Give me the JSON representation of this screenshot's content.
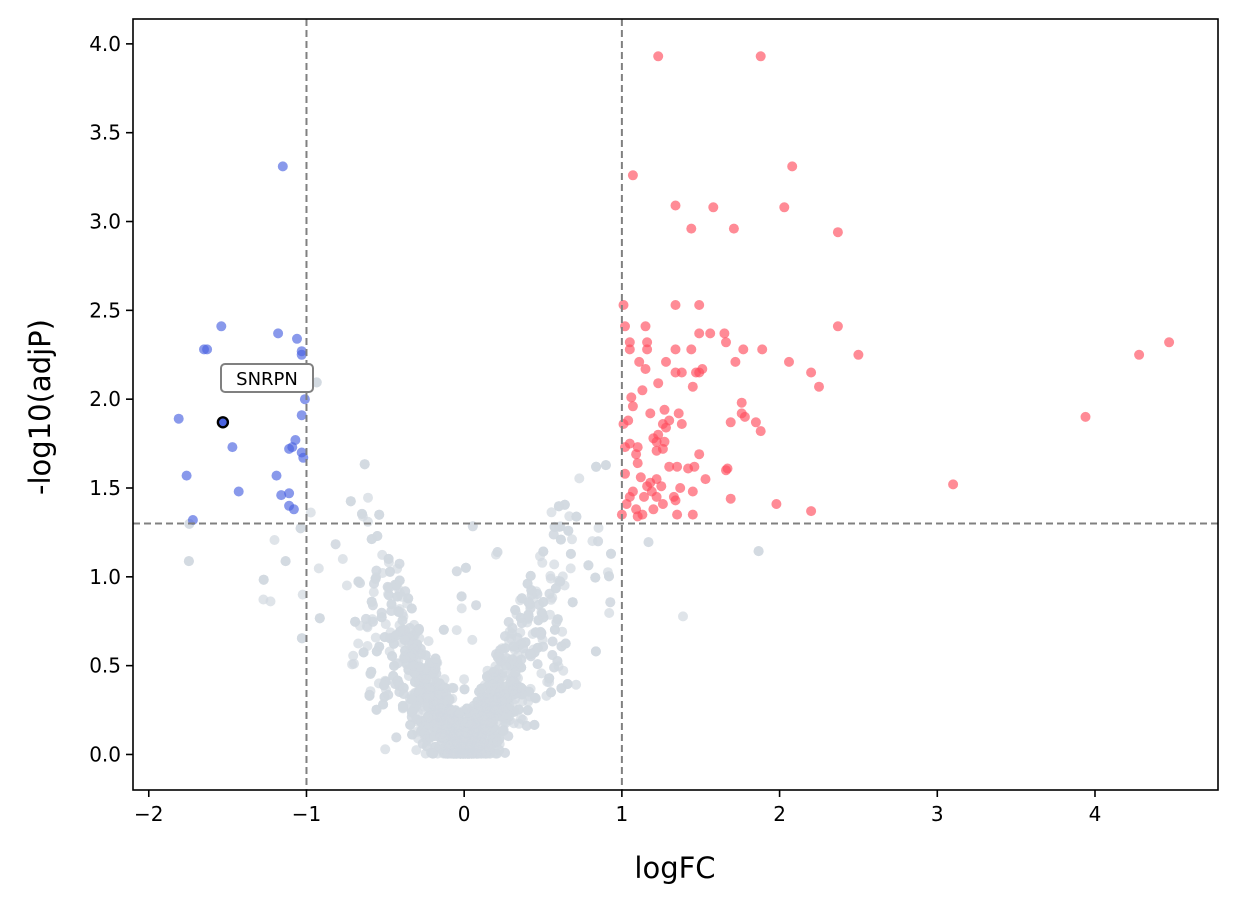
{
  "chart_data": {
    "type": "scatter",
    "title": "",
    "xlabel": "logFC",
    "ylabel": "-log10(adjP)",
    "xlim": [
      -2.1,
      4.78
    ],
    "ylim": [
      -0.2,
      4.14
    ],
    "xticks": [
      -2,
      -1,
      0,
      1,
      2,
      3,
      4
    ],
    "xtick_labels": [
      "−2",
      "−1",
      "0",
      "1",
      "2",
      "3",
      "4"
    ],
    "yticks": [
      0.0,
      0.5,
      1.0,
      1.5,
      2.0,
      2.5,
      3.0,
      3.5,
      4.0
    ],
    "ytick_labels": [
      "0.0",
      "0.5",
      "1.0",
      "1.5",
      "2.0",
      "2.5",
      "3.0",
      "3.5",
      "4.0"
    ],
    "thresholds": {
      "logfc": [
        -1,
        1
      ],
      "neg_log10_adjp": 1.3
    },
    "colors": {
      "up": "#ff4d5e",
      "down": "#4a63e0",
      "not_significant": "#d1d9e0",
      "threshold_line": "#808080",
      "highlight_edge": "#000000"
    },
    "series": [
      {
        "name": "up",
        "points": [
          [
            1.23,
            3.93
          ],
          [
            1.88,
            3.93
          ],
          [
            2.08,
            3.31
          ],
          [
            1.07,
            3.26
          ],
          [
            1.34,
            3.09
          ],
          [
            1.58,
            3.08
          ],
          [
            2.03,
            3.08
          ],
          [
            1.44,
            2.96
          ],
          [
            1.71,
            2.96
          ],
          [
            2.37,
            2.94
          ],
          [
            1.01,
            2.53
          ],
          [
            1.34,
            2.53
          ],
          [
            1.49,
            2.53
          ],
          [
            1.02,
            2.41
          ],
          [
            1.15,
            2.41
          ],
          [
            2.37,
            2.41
          ],
          [
            1.49,
            2.37
          ],
          [
            1.56,
            2.37
          ],
          [
            1.65,
            2.37
          ],
          [
            1.05,
            2.32
          ],
          [
            1.16,
            2.32
          ],
          [
            1.66,
            2.32
          ],
          [
            4.47,
            2.32
          ],
          [
            1.05,
            2.28
          ],
          [
            1.16,
            2.28
          ],
          [
            1.34,
            2.28
          ],
          [
            1.44,
            2.28
          ],
          [
            1.77,
            2.28
          ],
          [
            1.89,
            2.28
          ],
          [
            2.5,
            2.25
          ],
          [
            4.28,
            2.25
          ],
          [
            1.11,
            2.21
          ],
          [
            1.28,
            2.21
          ],
          [
            1.72,
            2.21
          ],
          [
            2.06,
            2.21
          ],
          [
            1.15,
            2.17
          ],
          [
            1.51,
            2.17
          ],
          [
            1.34,
            2.15
          ],
          [
            1.38,
            2.15
          ],
          [
            1.47,
            2.15
          ],
          [
            1.49,
            2.15
          ],
          [
            2.2,
            2.15
          ],
          [
            1.23,
            2.09
          ],
          [
            1.45,
            2.07
          ],
          [
            2.25,
            2.07
          ],
          [
            1.13,
            2.05
          ],
          [
            1.06,
            2.01
          ],
          [
            1.07,
            1.96
          ],
          [
            1.76,
            1.98
          ],
          [
            1.27,
            1.94
          ],
          [
            1.18,
            1.92
          ],
          [
            1.36,
            1.92
          ],
          [
            1.76,
            1.92
          ],
          [
            1.78,
            1.9
          ],
          [
            3.94,
            1.9
          ],
          [
            1.04,
            1.88
          ],
          [
            1.01,
            1.86
          ],
          [
            1.26,
            1.86
          ],
          [
            1.3,
            1.88
          ],
          [
            1.38,
            1.86
          ],
          [
            1.69,
            1.87
          ],
          [
            1.85,
            1.87
          ],
          [
            1.28,
            1.84
          ],
          [
            1.88,
            1.82
          ],
          [
            1.23,
            1.8
          ],
          [
            1.2,
            1.78
          ],
          [
            1.22,
            1.76
          ],
          [
            1.27,
            1.76
          ],
          [
            1.05,
            1.75
          ],
          [
            1.02,
            1.73
          ],
          [
            1.1,
            1.73
          ],
          [
            1.26,
            1.72
          ],
          [
            1.22,
            1.71
          ],
          [
            1.09,
            1.69
          ],
          [
            1.49,
            1.69
          ],
          [
            1.1,
            1.64
          ],
          [
            1.3,
            1.62
          ],
          [
            1.35,
            1.62
          ],
          [
            1.42,
            1.61
          ],
          [
            1.46,
            1.62
          ],
          [
            1.66,
            1.6
          ],
          [
            1.67,
            1.61
          ],
          [
            1.02,
            1.58
          ],
          [
            1.12,
            1.56
          ],
          [
            1.22,
            1.55
          ],
          [
            1.53,
            1.55
          ],
          [
            1.18,
            1.53
          ],
          [
            3.1,
            1.52
          ],
          [
            1.16,
            1.51
          ],
          [
            1.25,
            1.51
          ],
          [
            1.37,
            1.5
          ],
          [
            1.07,
            1.48
          ],
          [
            1.19,
            1.48
          ],
          [
            1.45,
            1.48
          ],
          [
            1.05,
            1.45
          ],
          [
            1.14,
            1.45
          ],
          [
            1.22,
            1.45
          ],
          [
            1.33,
            1.45
          ],
          [
            1.34,
            1.43
          ],
          [
            1.69,
            1.44
          ],
          [
            1.03,
            1.41
          ],
          [
            1.26,
            1.41
          ],
          [
            1.98,
            1.41
          ],
          [
            1.09,
            1.38
          ],
          [
            1.2,
            1.38
          ],
          [
            1.13,
            1.35
          ],
          [
            1.35,
            1.35
          ],
          [
            1.45,
            1.35
          ],
          [
            2.2,
            1.37
          ],
          [
            1.0,
            1.35
          ],
          [
            1.1,
            1.34
          ]
        ]
      },
      {
        "name": "down",
        "points": [
          [
            -1.15,
            3.31
          ],
          [
            -1.54,
            2.41
          ],
          [
            -1.18,
            2.37
          ],
          [
            -1.06,
            2.34
          ],
          [
            -1.63,
            2.28
          ],
          [
            -1.65,
            2.28
          ],
          [
            -1.03,
            2.27
          ],
          [
            -1.03,
            2.25
          ],
          [
            -1.01,
            2.0
          ],
          [
            -1.03,
            1.91
          ],
          [
            -1.81,
            1.89
          ],
          [
            -1.47,
            1.73
          ],
          [
            -1.07,
            1.77
          ],
          [
            -1.09,
            1.73
          ],
          [
            -1.11,
            1.72
          ],
          [
            -1.03,
            1.7
          ],
          [
            -1.02,
            1.67
          ],
          [
            -1.76,
            1.57
          ],
          [
            -1.19,
            1.57
          ],
          [
            -1.43,
            1.48
          ],
          [
            -1.11,
            1.47
          ],
          [
            -1.16,
            1.46
          ],
          [
            -1.11,
            1.4
          ],
          [
            -1.08,
            1.38
          ],
          [
            -1.72,
            1.32
          ]
        ]
      }
    ],
    "highlight": {
      "label": "SNRPN",
      "x": -1.53,
      "y": 1.87
    },
    "ns_points_note": "cloud of ~2000 non-significant genes rendered in grey"
  }
}
